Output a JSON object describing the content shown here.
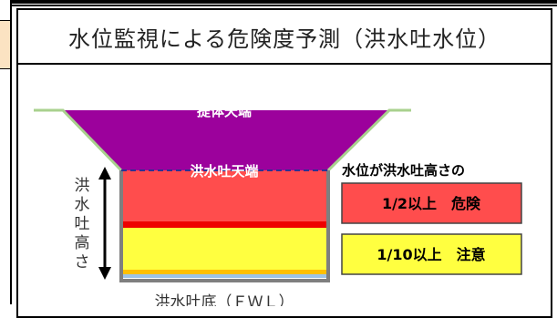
{
  "title": "水位監視による危険度予測（洪水吐水位）",
  "labels": {
    "crest": "提体天端",
    "spillway_top": "洪水吐天端",
    "spillway_bottom": "洪水吐底（ＦＷＬ）",
    "height_label": "洪水吐高さ"
  },
  "legend": {
    "heading": "水位が洪水吐高さの",
    "danger_text": "1/2以上　危険",
    "caution_text": "1/10以上　注意"
  },
  "colors": {
    "embankment": "#9c019c",
    "danger": "#ff4d4d",
    "danger_line": "#ee0000",
    "caution": "#ffff40",
    "orange_line": "#ffc000",
    "base": "#9dc3e6",
    "frame": "#7f7f7f",
    "slope": "#a9d18e",
    "dash": "#2e3192"
  }
}
